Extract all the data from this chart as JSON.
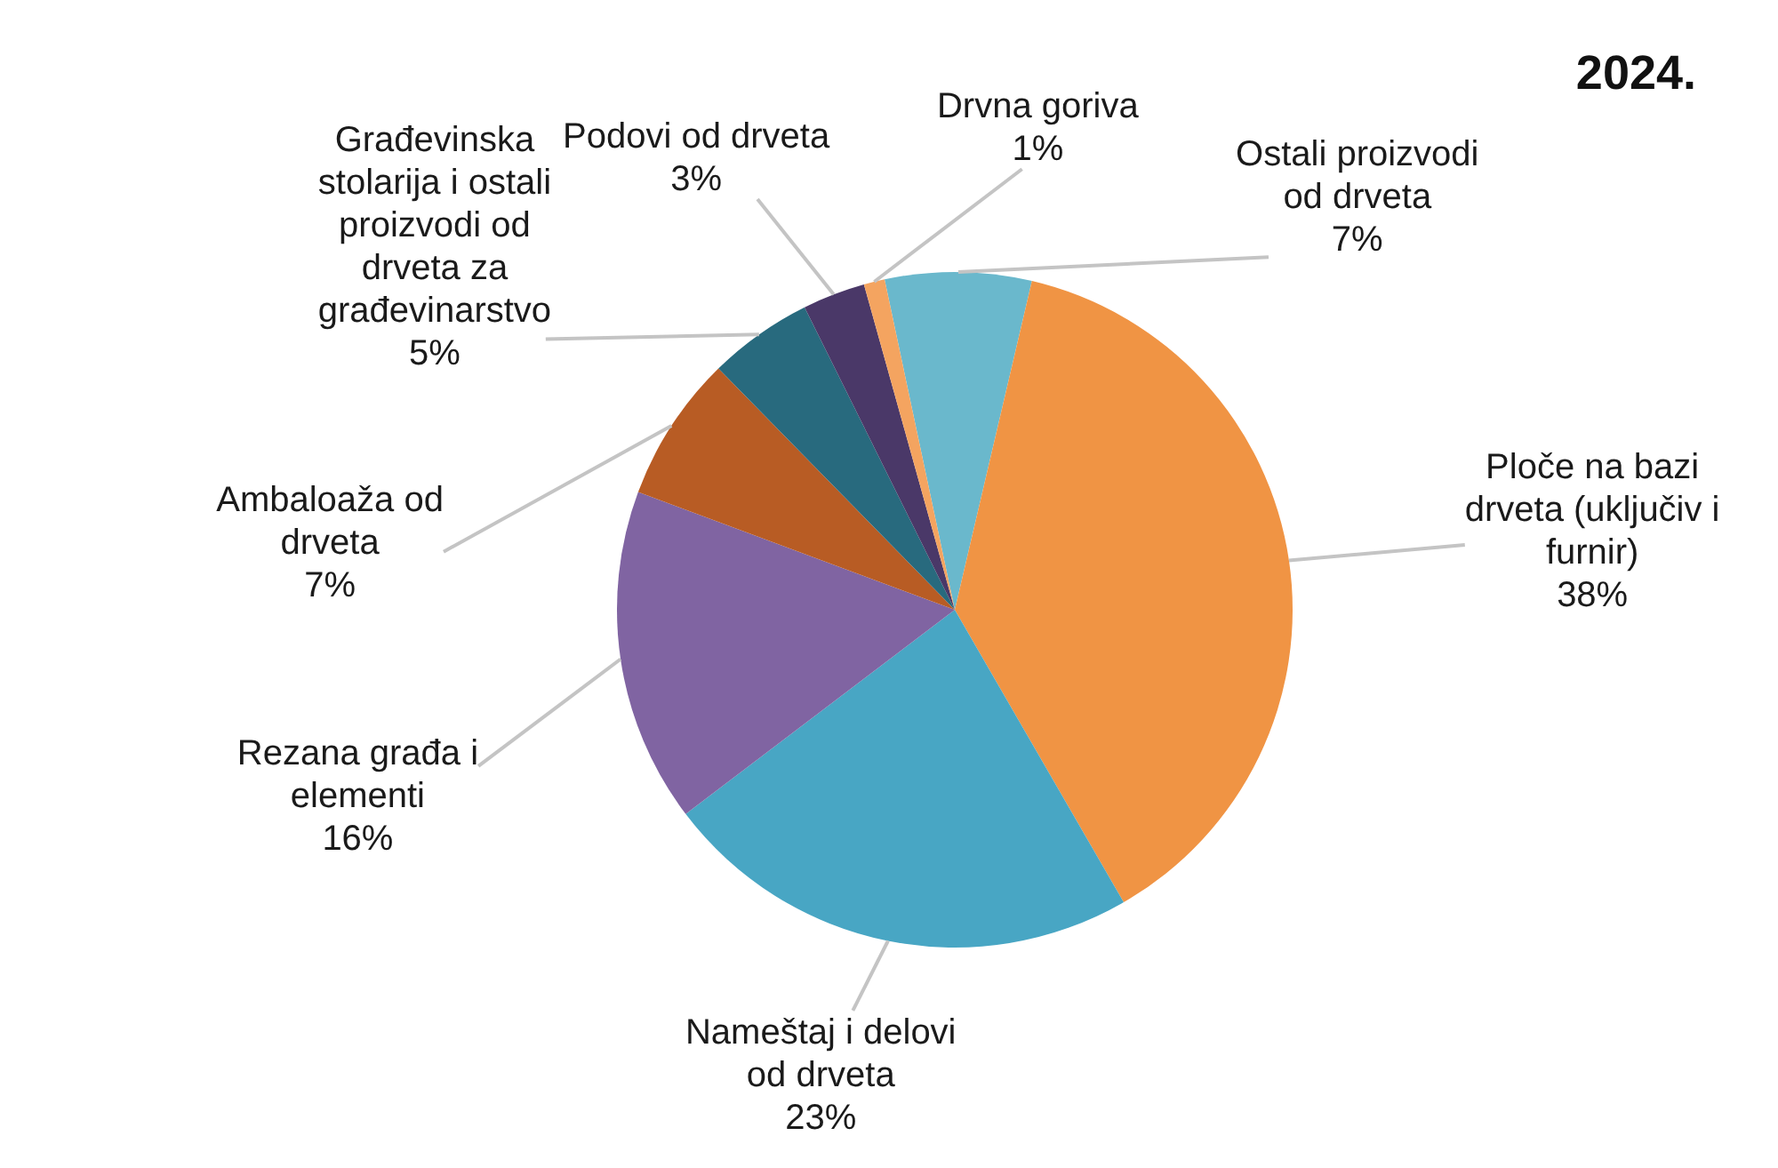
{
  "chart_data": {
    "type": "pie",
    "title": "2024.",
    "categories": [
      "Ostali proizvodi od drveta",
      "Ploče na bazi drveta (uključiv i furnir)",
      "Nameštaj i delovi od drveta",
      "Rezana građa i elementi",
      "Ambaloaža od drveta",
      "Građevinska stolarija i ostali proizvodi od drveta za građevinarstvo",
      "Podovi od drveta",
      "Drvna goriva"
    ],
    "values": [
      7,
      38,
      23,
      16,
      7,
      5,
      3,
      1
    ],
    "colors": [
      "#6ab8cc",
      "#f09444",
      "#48a6c4",
      "#8064a2",
      "#b85c24",
      "#286a7e",
      "#4a3868",
      "#f4a460"
    ],
    "value_labels": [
      "7%",
      "38%",
      "23%",
      "16%",
      "7%",
      "5%",
      "3%",
      "1%"
    ]
  }
}
